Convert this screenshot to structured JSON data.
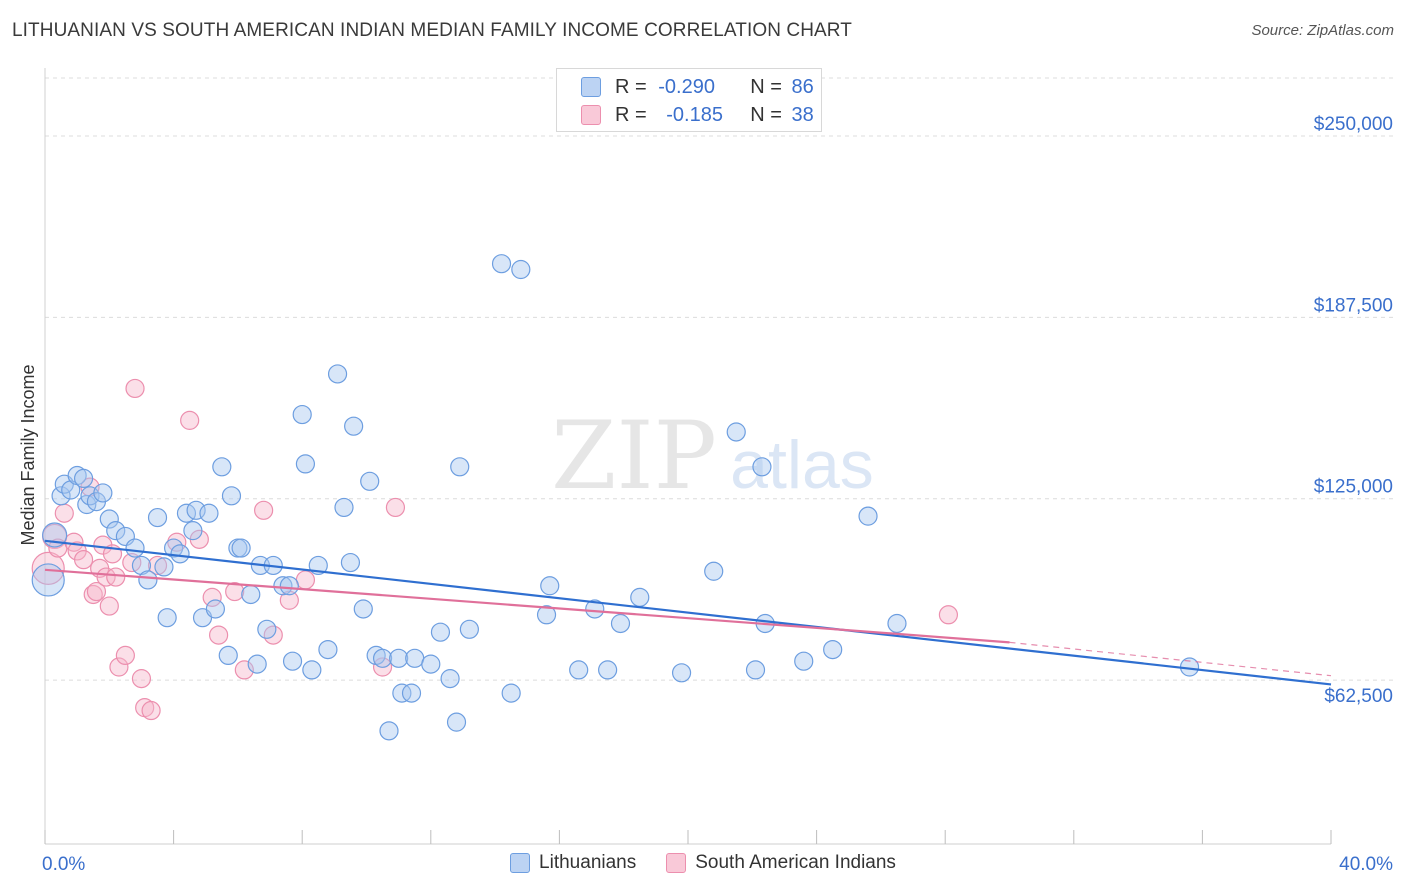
{
  "title": "LITHUANIAN VS SOUTH AMERICAN INDIAN MEDIAN FAMILY INCOME CORRELATION CHART",
  "source": "Source: ZipAtlas.com",
  "watermark": {
    "zip": "ZIP",
    "atlas": "atlas"
  },
  "colors": {
    "blue_fill": "#a9c8f0",
    "blue_stroke": "#6d9ee0",
    "blue_line": "#2f6fd0",
    "pink_fill": "#f7b9cd",
    "pink_stroke": "#ec8fae",
    "pink_line": "#e0709a",
    "axis_label": "#3a6fcc"
  },
  "stats": {
    "row1": {
      "r_label": "R = ",
      "r_value": "-0.290",
      "n_label": "N = ",
      "n_value": "86"
    },
    "row2": {
      "r_label": "R = ",
      "r_value": "-0.185",
      "n_label": "N = ",
      "n_value": "38"
    }
  },
  "legend": {
    "series1": "Lithuanians",
    "series2": "South American Indians"
  },
  "chart_data": {
    "type": "scatter",
    "title": "LITHUANIAN VS SOUTH AMERICAN INDIAN MEDIAN FAMILY INCOME CORRELATION CHART",
    "xlabel": "",
    "ylabel": "Median Family Income",
    "xlim": [
      0,
      40
    ],
    "ylim": [
      6000,
      270000
    ],
    "x_tick_labels": [
      "0.0%",
      "40.0%"
    ],
    "y_ticks": [
      62500,
      125000,
      187500,
      250000
    ],
    "y_tick_labels": [
      "$62,500",
      "$125,000",
      "$187,500",
      "$250,000"
    ],
    "grid": true,
    "legend_position": "bottom",
    "series": [
      {
        "name": "Lithuanians",
        "points": [
          [
            0.1,
            97000
          ],
          [
            0.3,
            112500
          ],
          [
            0.5,
            126000
          ],
          [
            0.6,
            130000
          ],
          [
            0.8,
            128000
          ],
          [
            1.0,
            133000
          ],
          [
            1.2,
            132000
          ],
          [
            1.3,
            123000
          ],
          [
            1.4,
            126000
          ],
          [
            1.6,
            124000
          ],
          [
            1.8,
            127000
          ],
          [
            2.0,
            118000
          ],
          [
            2.2,
            114000
          ],
          [
            2.5,
            112000
          ],
          [
            2.8,
            108000
          ],
          [
            3.0,
            102000
          ],
          [
            3.2,
            97000
          ],
          [
            3.5,
            118500
          ],
          [
            3.7,
            101500
          ],
          [
            3.8,
            84000
          ],
          [
            4.0,
            108000
          ],
          [
            4.2,
            106000
          ],
          [
            4.4,
            120000
          ],
          [
            4.6,
            114000
          ],
          [
            4.7,
            121000
          ],
          [
            4.9,
            84000
          ],
          [
            5.1,
            120000
          ],
          [
            5.3,
            87000
          ],
          [
            5.5,
            136000
          ],
          [
            5.7,
            71000
          ],
          [
            5.8,
            126000
          ],
          [
            6.0,
            108000
          ],
          [
            6.1,
            108000
          ],
          [
            6.4,
            92000
          ],
          [
            6.6,
            68000
          ],
          [
            6.7,
            102000
          ],
          [
            6.9,
            80000
          ],
          [
            7.1,
            102000
          ],
          [
            7.4,
            95000
          ],
          [
            7.6,
            95000
          ],
          [
            7.7,
            69000
          ],
          [
            8.0,
            154000
          ],
          [
            8.1,
            137000
          ],
          [
            8.3,
            66000
          ],
          [
            8.5,
            102000
          ],
          [
            8.8,
            73000
          ],
          [
            9.1,
            168000
          ],
          [
            9.3,
            122000
          ],
          [
            9.5,
            103000
          ],
          [
            9.6,
            150000
          ],
          [
            9.9,
            87000
          ],
          [
            10.1,
            131000
          ],
          [
            10.3,
            71000
          ],
          [
            10.5,
            70000
          ],
          [
            10.7,
            45000
          ],
          [
            11.0,
            70000
          ],
          [
            11.1,
            58000
          ],
          [
            11.4,
            58000
          ],
          [
            11.5,
            70000
          ],
          [
            12.0,
            68000
          ],
          [
            12.3,
            79000
          ],
          [
            12.6,
            63000
          ],
          [
            12.8,
            48000
          ],
          [
            12.9,
            136000
          ],
          [
            13.2,
            80000
          ],
          [
            14.2,
            206000
          ],
          [
            14.5,
            58000
          ],
          [
            14.8,
            204000
          ],
          [
            15.6,
            85000
          ],
          [
            15.7,
            95000
          ],
          [
            16.6,
            66000
          ],
          [
            17.1,
            87000
          ],
          [
            17.5,
            66000
          ],
          [
            17.9,
            82000
          ],
          [
            18.5,
            91000
          ],
          [
            19.8,
            65000
          ],
          [
            20.8,
            100000
          ],
          [
            21.5,
            148000
          ],
          [
            22.1,
            66000
          ],
          [
            22.3,
            136000
          ],
          [
            22.4,
            82000
          ],
          [
            23.6,
            69000
          ],
          [
            24.5,
            73000
          ],
          [
            25.6,
            119000
          ],
          [
            26.5,
            82000
          ],
          [
            35.6,
            67000
          ]
        ]
      },
      {
        "name": "South American Indians",
        "points": [
          [
            0.1,
            101000
          ],
          [
            0.3,
            112000
          ],
          [
            0.4,
            108000
          ],
          [
            0.6,
            120000
          ],
          [
            0.9,
            110000
          ],
          [
            1.0,
            107000
          ],
          [
            1.2,
            104000
          ],
          [
            1.4,
            129000
          ],
          [
            1.5,
            92000
          ],
          [
            1.6,
            93000
          ],
          [
            1.7,
            101000
          ],
          [
            1.8,
            109000
          ],
          [
            1.9,
            98000
          ],
          [
            2.0,
            88000
          ],
          [
            2.1,
            106000
          ],
          [
            2.2,
            98000
          ],
          [
            2.3,
            67000
          ],
          [
            2.5,
            71000
          ],
          [
            2.7,
            103000
          ],
          [
            2.8,
            163000
          ],
          [
            3.0,
            63000
          ],
          [
            3.1,
            53000
          ],
          [
            3.3,
            52000
          ],
          [
            3.5,
            102000
          ],
          [
            4.1,
            110000
          ],
          [
            4.5,
            152000
          ],
          [
            4.8,
            111000
          ],
          [
            5.2,
            91000
          ],
          [
            5.4,
            78000
          ],
          [
            5.9,
            93000
          ],
          [
            6.2,
            66000
          ],
          [
            6.8,
            121000
          ],
          [
            7.1,
            78000
          ],
          [
            7.6,
            90000
          ],
          [
            8.1,
            97000
          ],
          [
            10.5,
            67000
          ],
          [
            10.9,
            122000
          ],
          [
            28.1,
            85000
          ]
        ]
      }
    ],
    "trend_lines": [
      {
        "series": "Lithuanians",
        "from": [
          0,
          110500
        ],
        "to": [
          40,
          61000
        ]
      },
      {
        "series": "South American Indians",
        "from": [
          0,
          100500
        ],
        "to": [
          30,
          75500
        ],
        "dashed_extension_to": [
          40,
          64000
        ]
      }
    ]
  }
}
